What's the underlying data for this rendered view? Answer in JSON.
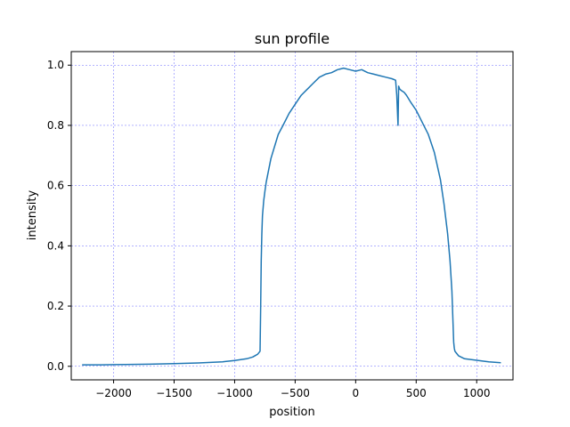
{
  "chart_data": {
    "type": "line",
    "title": "sun profile",
    "xlabel": "position",
    "ylabel": "intensity",
    "xlim": [
      -2350,
      1300
    ],
    "ylim": [
      -0.045,
      1.045
    ],
    "xticks": [
      -2000,
      -1500,
      -1000,
      -500,
      0,
      500,
      1000
    ],
    "xtick_labels": [
      "−2000",
      "−1500",
      "−1000",
      "−500",
      "0",
      "500",
      "1000"
    ],
    "yticks": [
      0.0,
      0.2,
      0.4,
      0.6,
      0.8,
      1.0
    ],
    "ytick_labels": [
      "0.0",
      "0.2",
      "0.4",
      "0.6",
      "0.8",
      "1.0"
    ],
    "grid": true,
    "colors": {
      "line": "#1f77b4",
      "grid": "#0000ff"
    },
    "series": [
      {
        "x": [
          -2260,
          -2100,
          -1900,
          -1700,
          -1500,
          -1300,
          -1100,
          -1000,
          -900,
          -850,
          -810,
          -790,
          -785,
          -780,
          -775,
          -770,
          -760,
          -750,
          -740,
          -720,
          -700,
          -670,
          -640,
          -600,
          -550,
          -500,
          -450,
          -400,
          -350,
          -300,
          -250,
          -200,
          -150,
          -100,
          -50,
          0,
          50,
          100,
          150,
          200,
          250,
          300,
          330,
          340,
          345,
          350,
          355,
          365,
          380,
          400,
          420,
          450,
          500,
          550,
          600,
          650,
          700,
          730,
          760,
          780,
          795,
          805,
          810,
          815,
          820,
          830,
          850,
          900,
          1000,
          1100,
          1200
        ],
        "y": [
          0.005,
          0.005,
          0.006,
          0.007,
          0.009,
          0.011,
          0.015,
          0.019,
          0.025,
          0.031,
          0.04,
          0.05,
          0.2,
          0.35,
          0.44,
          0.5,
          0.55,
          0.58,
          0.61,
          0.65,
          0.69,
          0.73,
          0.77,
          0.8,
          0.84,
          0.87,
          0.9,
          0.92,
          0.94,
          0.96,
          0.97,
          0.975,
          0.985,
          0.99,
          0.985,
          0.98,
          0.985,
          0.975,
          0.97,
          0.965,
          0.96,
          0.955,
          0.95,
          0.9,
          0.85,
          0.8,
          0.93,
          0.92,
          0.915,
          0.91,
          0.9,
          0.88,
          0.85,
          0.81,
          0.77,
          0.71,
          0.62,
          0.54,
          0.44,
          0.35,
          0.25,
          0.14,
          0.08,
          0.06,
          0.05,
          0.045,
          0.035,
          0.025,
          0.02,
          0.015,
          0.012
        ]
      }
    ]
  }
}
